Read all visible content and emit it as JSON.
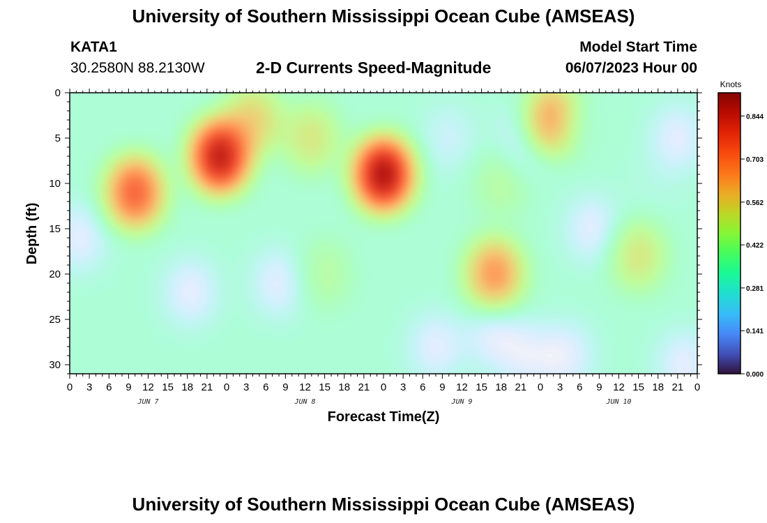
{
  "header": {
    "title_top": "University of Southern Mississippi Ocean Cube (AMSEAS)",
    "title_bottom": "University of Southern Mississippi Ocean Cube (AMSEAS)",
    "station": "KATA1",
    "coords": "30.2580N  88.2130W",
    "subtitle": "2-D Currents Speed-Magnitude",
    "model_start_label": "Model Start Time",
    "model_start_value": "06/07/2023 Hour 00"
  },
  "chart_data": {
    "type": "heatmap",
    "title": "2-D Currents Speed-Magnitude",
    "xlabel": "Forecast Time(Z)",
    "ylabel": "Depth (ft)",
    "x_range_hours": [
      0,
      96
    ],
    "y_range_ft": [
      0,
      31
    ],
    "x_tick_labels": [
      "0",
      "3",
      "6",
      "9",
      "12",
      "15",
      "18",
      "21",
      "0",
      "3",
      "6",
      "9",
      "12",
      "15",
      "18",
      "21",
      "0",
      "3",
      "6",
      "9",
      "12",
      "15",
      "18",
      "21",
      "0",
      "3",
      "6",
      "9",
      "12",
      "15",
      "18",
      "21",
      "0"
    ],
    "y_ticks": [
      0,
      5,
      10,
      15,
      20,
      25,
      30
    ],
    "date_labels": [
      {
        "text": "JUN 7",
        "hour": 12
      },
      {
        "text": "JUN 8",
        "hour": 36
      },
      {
        "text": "JUN 9",
        "hour": 60
      },
      {
        "text": "JUN 10",
        "hour": 84
      }
    ],
    "colorbar": {
      "unit": "Knots",
      "range": [
        0,
        0.92
      ],
      "ticks": [
        "0.000",
        "0.141",
        "0.281",
        "0.422",
        "0.562",
        "0.703",
        "0.844"
      ],
      "tick_values": [
        0.0,
        0.141,
        0.281,
        0.422,
        0.562,
        0.703,
        0.844
      ]
    },
    "speed_features_knots": [
      {
        "hour": 1.5,
        "depth_ft": 16,
        "speed": 0.05
      },
      {
        "hour": 10,
        "depth_ft": 11,
        "speed": 0.78
      },
      {
        "hour": 18.5,
        "depth_ft": 22,
        "speed": 0.0
      },
      {
        "hour": 23,
        "depth_ft": 7,
        "speed": 0.9
      },
      {
        "hour": 28,
        "depth_ft": 3,
        "speed": 0.6
      },
      {
        "hour": 32,
        "depth_ft": 21,
        "speed": 0.03
      },
      {
        "hour": 37,
        "depth_ft": 5,
        "speed": 0.55
      },
      {
        "hour": 39,
        "depth_ft": 20,
        "speed": 0.45
      },
      {
        "hour": 48,
        "depth_ft": 9,
        "speed": 0.92
      },
      {
        "hour": 56,
        "depth_ft": 28,
        "speed": 0.05
      },
      {
        "hour": 58,
        "depth_ft": 5,
        "speed": 0.2
      },
      {
        "hour": 65,
        "depth_ft": 20,
        "speed": 0.7
      },
      {
        "hour": 65,
        "depth_ft": 27,
        "speed": 0.05
      },
      {
        "hour": 66,
        "depth_ft": 10,
        "speed": 0.45
      },
      {
        "hour": 70,
        "depth_ft": 5,
        "speed": 0.06
      },
      {
        "hour": 70,
        "depth_ft": 29,
        "speed": 0.05
      },
      {
        "hour": 74,
        "depth_ft": 3,
        "speed": 0.7
      },
      {
        "hour": 76,
        "depth_ft": 29,
        "speed": 0.0
      },
      {
        "hour": 79,
        "depth_ft": 4,
        "speed": 0.35
      },
      {
        "hour": 80,
        "depth_ft": 15,
        "speed": 0.05
      },
      {
        "hour": 87,
        "depth_ft": 18,
        "speed": 0.55
      },
      {
        "hour": 90,
        "depth_ft": 10,
        "speed": 0.3
      },
      {
        "hour": 93,
        "depth_ft": 5,
        "speed": 0.05
      },
      {
        "hour": 94,
        "depth_ft": 30,
        "speed": 0.0
      }
    ]
  }
}
